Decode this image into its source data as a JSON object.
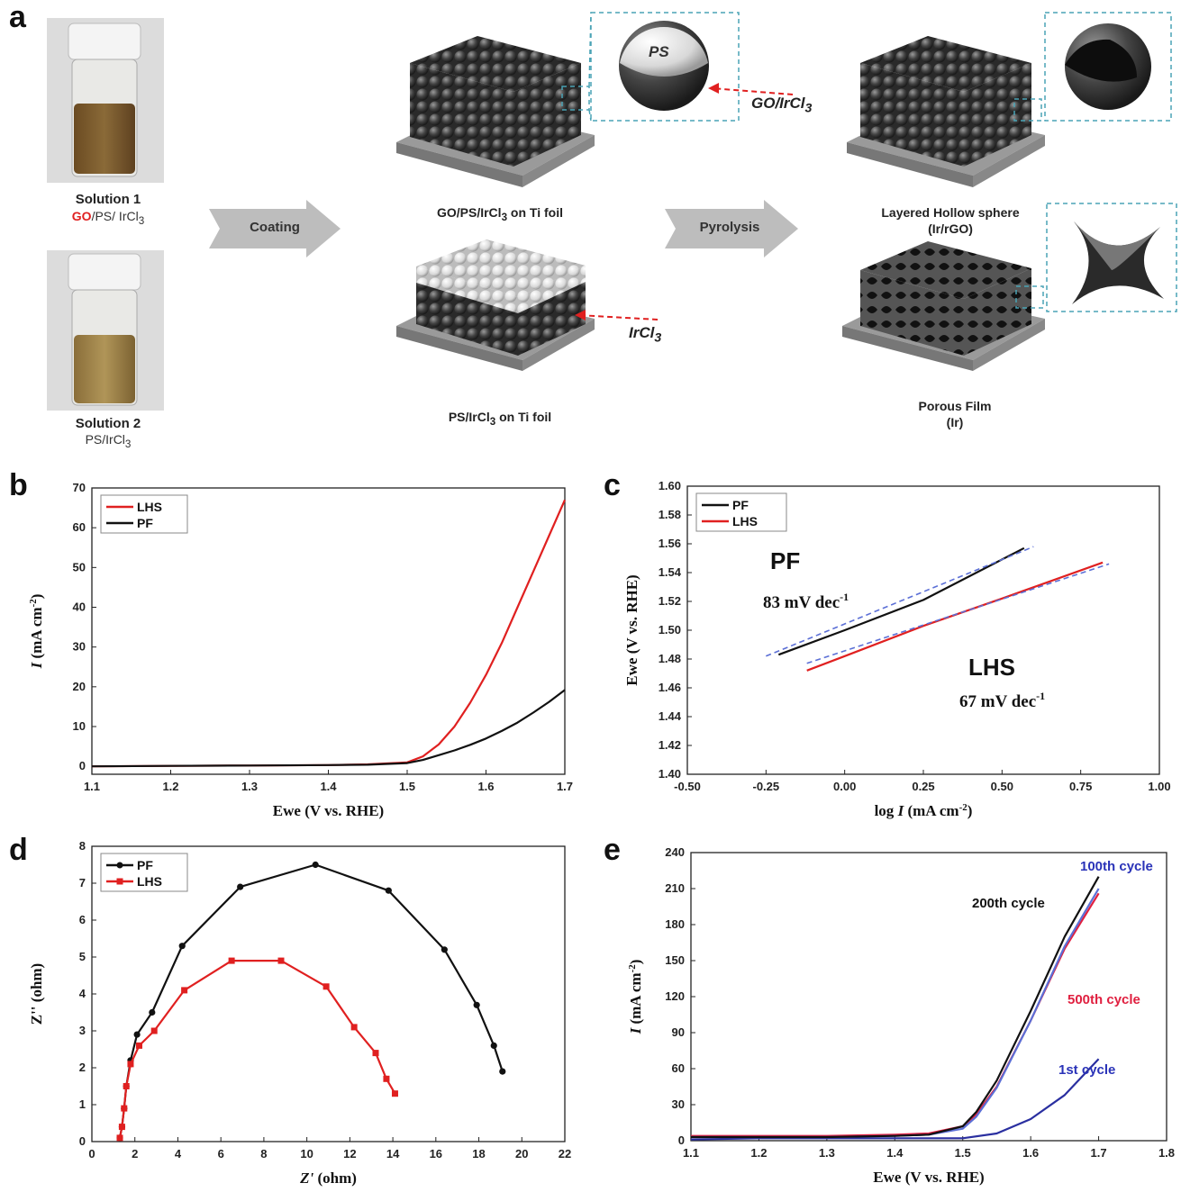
{
  "panel_a": {
    "letter": "a",
    "solution1": {
      "title": "Solution 1",
      "go": "GO",
      "rest": "/PS/ IrCl",
      "sub": "3"
    },
    "solution2": {
      "title": "Solution 2",
      "text": "PS/IrCl",
      "sub": "3"
    },
    "arrow_coating": "Coating",
    "arrow_pyrolysis": "Pyrolysis",
    "label_go_ps": {
      "text": "GO/PS/IrCl",
      "sub": "3",
      "tail": " on Ti foil"
    },
    "label_ps": {
      "text": "PS/IrCl",
      "sub": "3",
      "tail": " on Ti foil"
    },
    "label_lhs": {
      "line1": "Layered Hollow sphere",
      "line2": "(Ir/rGO)"
    },
    "label_pf": {
      "line1": "Porous Film",
      "line2": "(Ir)"
    },
    "inset_ps": "PS",
    "callout_go": {
      "text": "GO/IrCl",
      "sub": "3"
    },
    "callout_ir": {
      "text": "IrCl",
      "sub": "3"
    },
    "colors": {
      "go_red": "#e02020",
      "dashed_box": "#4aa3b5",
      "arrow_fill": "#bdbdbd"
    }
  },
  "chart_data": [
    {
      "panel": "b",
      "type": "line",
      "xlabel": "Ewe (V vs. RHE)",
      "ylabel_italic": "I",
      "ylabel_rest": " (mA cm",
      "ylabel_sup": "-2",
      "ylabel_end": ")",
      "xlim": [
        1.1,
        1.7
      ],
      "ylim": [
        -2,
        70
      ],
      "xticks": [
        "1.1",
        "1.2",
        "1.3",
        "1.4",
        "1.5",
        "1.6",
        "1.7"
      ],
      "yticks": [
        "0",
        "10",
        "20",
        "30",
        "40",
        "50",
        "60",
        "70"
      ],
      "legend": "top-left",
      "series": [
        {
          "name": "LHS",
          "color": "#e02020",
          "x": [
            1.1,
            1.2,
            1.3,
            1.4,
            1.45,
            1.5,
            1.52,
            1.54,
            1.56,
            1.58,
            1.6,
            1.62,
            1.64,
            1.66,
            1.68,
            1.7
          ],
          "y": [
            0,
            0.1,
            0.2,
            0.3,
            0.5,
            1.0,
            2.5,
            5.5,
            10,
            16,
            23,
            31,
            40,
            49,
            58,
            67
          ]
        },
        {
          "name": "PF",
          "color": "#111111",
          "x": [
            1.1,
            1.2,
            1.3,
            1.4,
            1.45,
            1.5,
            1.52,
            1.54,
            1.56,
            1.58,
            1.6,
            1.62,
            1.64,
            1.66,
            1.68,
            1.7
          ],
          "y": [
            0,
            0.1,
            0.2,
            0.3,
            0.4,
            0.8,
            1.6,
            2.8,
            4.0,
            5.4,
            7.0,
            8.9,
            11,
            13.5,
            16.2,
            19.2
          ]
        }
      ]
    },
    {
      "panel": "c",
      "type": "line",
      "xlabel_italic_pre": "log ",
      "xlabel_italic": "I",
      "xlabel_rest": " (mA cm",
      "xlabel_sup": "-2",
      "xlabel_end": ")",
      "ylabel": "Ewe (V vs. RHE)",
      "xlim": [
        -0.5,
        1.0
      ],
      "ylim": [
        1.4,
        1.6
      ],
      "xticks": [
        "-0.50",
        "-0.25",
        "0.00",
        "0.25",
        "0.50",
        "0.75",
        "1.00"
      ],
      "yticks": [
        "1.40",
        "1.42",
        "1.44",
        "1.46",
        "1.48",
        "1.50",
        "1.52",
        "1.54",
        "1.56",
        "1.58",
        "1.60"
      ],
      "legend": "top-left",
      "annotations": [
        {
          "text": "PF",
          "style": "big"
        },
        {
          "text": "83 mV dec",
          "sup": "-1"
        },
        {
          "text": "LHS",
          "style": "big"
        },
        {
          "text": "67 mV dec",
          "sup": "-1"
        }
      ],
      "series": [
        {
          "name": "PF",
          "color": "#111111",
          "x": [
            -0.21,
            0.0,
            0.25,
            0.57
          ],
          "y": [
            1.483,
            1.5,
            1.521,
            1.557
          ]
        },
        {
          "name": "LHS",
          "color": "#e02020",
          "x": [
            -0.12,
            0.0,
            0.25,
            0.5,
            0.82
          ],
          "y": [
            1.472,
            1.482,
            1.503,
            1.522,
            1.547
          ]
        },
        {
          "name": "PF fit",
          "color": "#5b6fd6",
          "dashed": true,
          "x": [
            -0.25,
            0.6
          ],
          "y": [
            1.482,
            1.558
          ]
        },
        {
          "name": "LHS fit",
          "color": "#5b6fd6",
          "dashed": true,
          "x": [
            -0.12,
            0.84
          ],
          "y": [
            1.477,
            1.546
          ]
        }
      ]
    },
    {
      "panel": "d",
      "type": "line",
      "xlabel_italic": "Z'",
      "xlabel_rest": " (ohm)",
      "ylabel": "Z'' (ohm)",
      "xlim": [
        0,
        22
      ],
      "ylim": [
        0,
        8
      ],
      "xticks": [
        "0",
        "2",
        "4",
        "6",
        "8",
        "10",
        "12",
        "14",
        "16",
        "18",
        "20",
        "22"
      ],
      "yticks": [
        "0",
        "1",
        "2",
        "3",
        "4",
        "5",
        "6",
        "7",
        "8"
      ],
      "legend": "top-left",
      "series": [
        {
          "name": "PF",
          "color": "#111111",
          "marker": "circle",
          "x": [
            1.3,
            1.4,
            1.5,
            1.6,
            1.8,
            2.1,
            2.8,
            4.2,
            6.9,
            10.4,
            13.8,
            16.4,
            17.9,
            18.7,
            19.1
          ],
          "y": [
            0.1,
            0.4,
            0.9,
            1.5,
            2.2,
            2.9,
            3.5,
            5.3,
            6.9,
            7.5,
            6.8,
            5.2,
            3.7,
            2.6,
            1.9
          ]
        },
        {
          "name": "LHS",
          "color": "#e02020",
          "marker": "square",
          "x": [
            1.3,
            1.4,
            1.5,
            1.6,
            1.8,
            2.2,
            2.9,
            4.3,
            6.5,
            8.8,
            10.9,
            12.2,
            13.2,
            13.7,
            14.1
          ],
          "y": [
            0.1,
            0.4,
            0.9,
            1.5,
            2.1,
            2.6,
            3.0,
            4.1,
            4.9,
            4.9,
            4.2,
            3.1,
            2.4,
            1.7,
            1.3
          ]
        }
      ]
    },
    {
      "panel": "e",
      "type": "line",
      "xlabel": "Ewe (V vs. RHE)",
      "ylabel_italic": "I",
      "ylabel_rest": " (mA cm",
      "ylabel_sup": "-2",
      "ylabel_end": ")",
      "xlim": [
        1.1,
        1.8
      ],
      "ylim": [
        0,
        240
      ],
      "xticks": [
        "1.1",
        "1.2",
        "1.3",
        "1.4",
        "1.5",
        "1.6",
        "1.7",
        "1.8"
      ],
      "yticks": [
        "0",
        "30",
        "60",
        "90",
        "120",
        "150",
        "180",
        "210",
        "240"
      ],
      "annotations": [
        {
          "text": "100th cycle",
          "color": "#2a33b8"
        },
        {
          "text": "200th cycle",
          "color": "#111111"
        },
        {
          "text": "500th cycle",
          "color": "#e02040"
        },
        {
          "text": "1st cycle",
          "color": "#2a33b8"
        }
      ],
      "series": [
        {
          "name": "1st cycle",
          "color": "#2a2fa0",
          "x": [
            1.1,
            1.2,
            1.3,
            1.4,
            1.5,
            1.55,
            1.6,
            1.65,
            1.7
          ],
          "y": [
            1,
            2,
            2,
            2,
            2,
            6,
            18,
            38,
            68
          ]
        },
        {
          "name": "500th cycle",
          "color": "#e02040",
          "x": [
            1.1,
            1.2,
            1.3,
            1.4,
            1.45,
            1.5,
            1.52,
            1.55,
            1.6,
            1.65,
            1.7
          ],
          "y": [
            4,
            4,
            4,
            5,
            6,
            12,
            22,
            45,
            100,
            160,
            206
          ]
        },
        {
          "name": "100th cycle",
          "color": "#5b6fd6",
          "x": [
            1.1,
            1.2,
            1.3,
            1.4,
            1.45,
            1.5,
            1.52,
            1.55,
            1.6,
            1.65,
            1.7
          ],
          "y": [
            3,
            3,
            3,
            4,
            5,
            10,
            20,
            44,
            100,
            162,
            210
          ]
        },
        {
          "name": "200th cycle",
          "color": "#111111",
          "x": [
            1.1,
            1.2,
            1.3,
            1.4,
            1.45,
            1.5,
            1.52,
            1.55,
            1.6,
            1.65,
            1.7
          ],
          "y": [
            3,
            3,
            3,
            4,
            5,
            12,
            24,
            50,
            108,
            170,
            220
          ]
        }
      ]
    }
  ]
}
